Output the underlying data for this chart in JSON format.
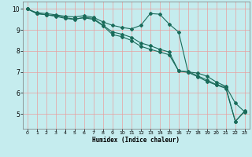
{
  "xlabel": "Humidex (Indice chaleur)",
  "bg_color": "#c5ecee",
  "grid_color": "#e8a0a0",
  "line_color": "#1a6b5a",
  "xlim": [
    -0.5,
    23.5
  ],
  "ylim": [
    4.3,
    10.35
  ],
  "xticks": [
    0,
    1,
    2,
    3,
    4,
    5,
    6,
    7,
    8,
    9,
    10,
    11,
    12,
    13,
    14,
    15,
    16,
    17,
    18,
    19,
    20,
    21,
    22,
    23
  ],
  "yticks": [
    5,
    6,
    7,
    8,
    9,
    10
  ],
  "line1_x": [
    0,
    1,
    2,
    3,
    4,
    5,
    6,
    7,
    8,
    9,
    10,
    11,
    12,
    13,
    14,
    15,
    16,
    17,
    18,
    19,
    20,
    21,
    22,
    23
  ],
  "line1_y": [
    10.0,
    9.82,
    9.78,
    9.72,
    9.65,
    9.62,
    9.68,
    9.6,
    9.38,
    9.22,
    9.12,
    9.05,
    9.22,
    9.78,
    9.75,
    9.28,
    8.9,
    7.0,
    6.95,
    6.8,
    6.52,
    6.32,
    5.52,
    5.1
  ],
  "line2_x": [
    0,
    1,
    2,
    3,
    4,
    5,
    6,
    7,
    8,
    9,
    10,
    11,
    12,
    13,
    14,
    15,
    16,
    17,
    18,
    19,
    20,
    21,
    22,
    23
  ],
  "line2_y": [
    10.0,
    9.78,
    9.72,
    9.68,
    9.58,
    9.52,
    9.58,
    9.5,
    9.2,
    8.78,
    8.68,
    8.5,
    8.22,
    8.08,
    7.95,
    7.82,
    7.05,
    6.98,
    6.78,
    6.55,
    6.38,
    6.22,
    4.65,
    5.12
  ],
  "line3_x": [
    0,
    1,
    2,
    3,
    4,
    5,
    6,
    7,
    8,
    9,
    10,
    11,
    12,
    13,
    14,
    15,
    16,
    17,
    18,
    19,
    20,
    21,
    22,
    23
  ],
  "line3_y": [
    10.0,
    9.78,
    9.72,
    9.65,
    9.55,
    9.5,
    9.6,
    9.55,
    9.22,
    8.9,
    8.8,
    8.65,
    8.38,
    8.25,
    8.08,
    7.95,
    7.05,
    7.02,
    6.82,
    6.62,
    6.4,
    6.28,
    4.65,
    5.15
  ]
}
